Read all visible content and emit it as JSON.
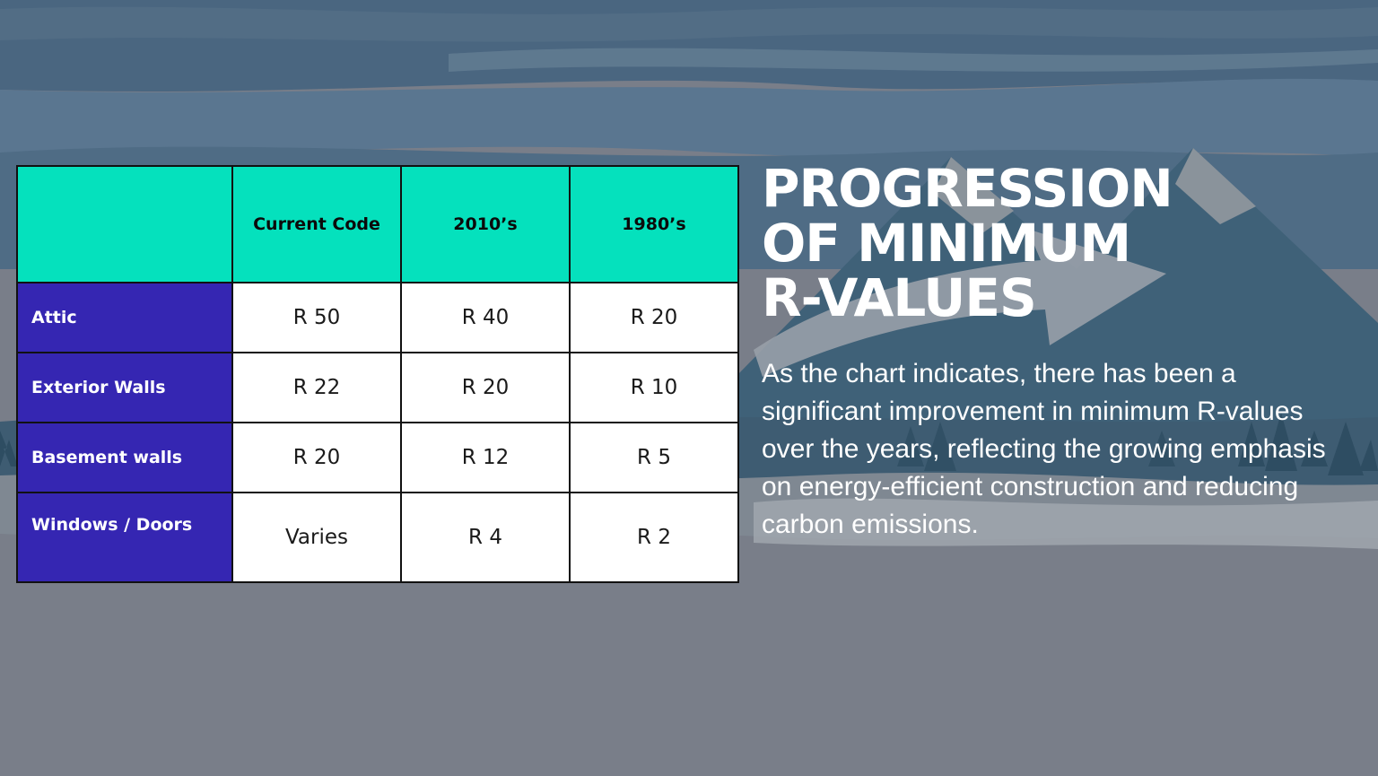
{
  "slide": {
    "heading_lines": [
      "PROGRESSION",
      "OF MINIMUM",
      "R-VALUES"
    ],
    "description": "As the chart indicates, there has been a significant improvement in minimum R-values over the years, reflecting the growing emphasis on energy-efficient construction and reducing carbon emissions."
  },
  "table": {
    "corner": "",
    "columns": [
      "Current Code",
      "2010’s",
      "1980’s"
    ],
    "rows": [
      {
        "label": "Attic",
        "values": [
          "R 50",
          "R 40",
          "R 20"
        ]
      },
      {
        "label": "Exterior Walls",
        "values": [
          "R 22",
          "R 20",
          "R 10"
        ]
      },
      {
        "label": "Basement walls",
        "values": [
          "R 20",
          "R 12",
          "R 5"
        ]
      },
      {
        "label": "Windows / Doors",
        "values": [
          "Varies",
          "R 4",
          "R 2"
        ]
      }
    ]
  },
  "colors": {
    "header_fill": "#05e1bd",
    "row_label_fill": "#3526b2",
    "cell_fill": "#ffffff",
    "text_light": "#ffffff",
    "background_slate": "#797e89"
  }
}
